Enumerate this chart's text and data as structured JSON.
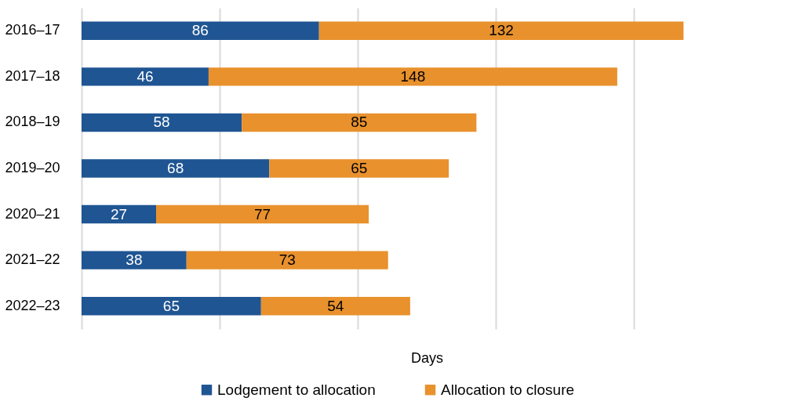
{
  "chart_data": {
    "type": "bar",
    "orientation": "horizontal",
    "stacked": true,
    "xlabel": "Days",
    "categories": [
      "2016–17",
      "2017–18",
      "2018–19",
      "2019–20",
      "2020–21",
      "2021–22",
      "2022–23"
    ],
    "series": [
      {
        "name": "Lodgement to allocation",
        "color": "#1f5592",
        "values": [
          86,
          46,
          58,
          68,
          27,
          38,
          65
        ]
      },
      {
        "name": "Allocation to closure",
        "color": "#e8912d",
        "values": [
          132,
          148,
          85,
          65,
          77,
          73,
          54
        ]
      }
    ],
    "xlim": [
      0,
      250
    ],
    "xticks": [
      {
        "value": 0,
        "label": null
      },
      {
        "value": 50,
        "label": null
      },
      {
        "value": 100,
        "label": null
      },
      {
        "value": 150,
        "label": null
      },
      {
        "value": 200,
        "label": null
      }
    ],
    "tick_labels": "y",
    "grid": "x",
    "legend": "bottom",
    "data_labels": true
  }
}
